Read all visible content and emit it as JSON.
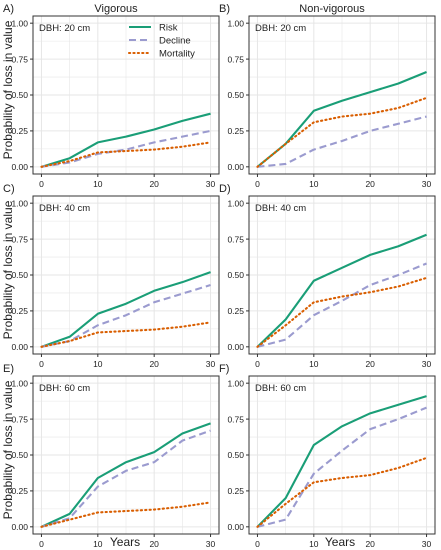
{
  "figure": {
    "y_axis_label": "Probability of loss in value",
    "x_axis_label": "Years",
    "colors": {
      "panel_border": "#333333",
      "grid": "#e6e6e6",
      "text": "#222222",
      "tick_text": "#4d4d4d"
    }
  },
  "chart_data": [
    {
      "type": "line",
      "panel_label": "A)",
      "column_title": "Vigorous",
      "inset_label": "DBH: 20 cm",
      "x": [
        0,
        5,
        10,
        15,
        20,
        25,
        30
      ],
      "xlim": [
        -1.5,
        31.5
      ],
      "ylim": [
        -0.05,
        1.05
      ],
      "x_ticks": [
        0,
        10,
        20,
        30
      ],
      "y_ticks": [
        0.0,
        0.25,
        0.5,
        0.75,
        1.0
      ],
      "y_tick_labels": [
        "0.00",
        "0.25",
        "0.50",
        "0.75",
        "1.00"
      ],
      "grid": true,
      "legend": {
        "placement": "top-center",
        "entries": [
          "Risk",
          "Decline",
          "Mortality"
        ]
      },
      "series": [
        {
          "name": "Risk",
          "color": "#1a9e77",
          "style": "solid",
          "values": [
            0.0,
            0.06,
            0.17,
            0.21,
            0.26,
            0.32,
            0.37
          ]
        },
        {
          "name": "Decline",
          "color": "#9b9bcf",
          "style": "dashed",
          "values": [
            0.0,
            0.03,
            0.09,
            0.12,
            0.17,
            0.21,
            0.25
          ]
        },
        {
          "name": "Mortality",
          "color": "#d95f02",
          "style": "dotted",
          "values": [
            0.0,
            0.04,
            0.1,
            0.11,
            0.12,
            0.14,
            0.17
          ]
        }
      ]
    },
    {
      "type": "line",
      "panel_label": "B)",
      "column_title": "Non-vigorous",
      "inset_label": "DBH: 20 cm",
      "x": [
        0,
        5,
        10,
        15,
        20,
        25,
        30
      ],
      "xlim": [
        -1.5,
        31.5
      ],
      "ylim": [
        -0.05,
        1.05
      ],
      "x_ticks": [
        0,
        10,
        20,
        30
      ],
      "y_ticks": [
        0.0,
        0.25,
        0.5,
        0.75,
        1.0
      ],
      "y_tick_labels": [
        "0.00",
        "0.25",
        "0.50",
        "0.75",
        "1.00"
      ],
      "grid": true,
      "series": [
        {
          "color": "#1a9e77",
          "style": "solid",
          "values": [
            0.0,
            0.16,
            0.39,
            0.46,
            0.52,
            0.58,
            0.66
          ]
        },
        {
          "color": "#9b9bcf",
          "style": "dashed",
          "values": [
            0.0,
            0.02,
            0.12,
            0.18,
            0.25,
            0.3,
            0.35
          ]
        },
        {
          "color": "#d95f02",
          "style": "dotted",
          "values": [
            0.0,
            0.16,
            0.31,
            0.35,
            0.37,
            0.41,
            0.48
          ]
        }
      ]
    },
    {
      "type": "line",
      "panel_label": "C)",
      "inset_label": "DBH: 40 cm",
      "x": [
        0,
        5,
        10,
        15,
        20,
        25,
        30
      ],
      "xlim": [
        -1.5,
        31.5
      ],
      "ylim": [
        -0.05,
        1.05
      ],
      "x_ticks": [
        0,
        10,
        20,
        30
      ],
      "y_ticks": [
        0.0,
        0.25,
        0.5,
        0.75,
        1.0
      ],
      "y_tick_labels": [
        "0.00",
        "0.25",
        "0.50",
        "0.75",
        "1.00"
      ],
      "grid": true,
      "series": [
        {
          "color": "#1a9e77",
          "style": "solid",
          "values": [
            0.0,
            0.07,
            0.23,
            0.3,
            0.39,
            0.45,
            0.52
          ]
        },
        {
          "color": "#9b9bcf",
          "style": "dashed",
          "values": [
            0.0,
            0.04,
            0.15,
            0.22,
            0.31,
            0.37,
            0.43
          ]
        },
        {
          "color": "#d95f02",
          "style": "dotted",
          "values": [
            0.0,
            0.04,
            0.1,
            0.11,
            0.12,
            0.14,
            0.17
          ]
        }
      ]
    },
    {
      "type": "line",
      "panel_label": "D)",
      "inset_label": "DBH: 40 cm",
      "x": [
        0,
        5,
        10,
        15,
        20,
        25,
        30
      ],
      "xlim": [
        -1.5,
        31.5
      ],
      "ylim": [
        -0.05,
        1.05
      ],
      "x_ticks": [
        0,
        10,
        20,
        30
      ],
      "y_ticks": [
        0.0,
        0.25,
        0.5,
        0.75,
        1.0
      ],
      "y_tick_labels": [
        "0.00",
        "0.25",
        "0.50",
        "0.75",
        "1.00"
      ],
      "grid": true,
      "series": [
        {
          "color": "#1a9e77",
          "style": "solid",
          "values": [
            0.0,
            0.19,
            0.46,
            0.55,
            0.64,
            0.7,
            0.78
          ]
        },
        {
          "color": "#9b9bcf",
          "style": "dashed",
          "values": [
            0.0,
            0.05,
            0.22,
            0.32,
            0.43,
            0.5,
            0.58
          ]
        },
        {
          "color": "#d95f02",
          "style": "dotted",
          "values": [
            0.0,
            0.15,
            0.31,
            0.35,
            0.38,
            0.42,
            0.48
          ]
        }
      ]
    },
    {
      "type": "line",
      "panel_label": "E)",
      "inset_label": "DBH: 60 cm",
      "x": [
        0,
        5,
        10,
        15,
        20,
        25,
        30
      ],
      "xlim": [
        -1.5,
        31.5
      ],
      "ylim": [
        -0.05,
        1.05
      ],
      "x_ticks": [
        0,
        10,
        20,
        30
      ],
      "y_ticks": [
        0.0,
        0.25,
        0.5,
        0.75,
        1.0
      ],
      "y_tick_labels": [
        "0.00",
        "0.25",
        "0.50",
        "0.75",
        "1.00"
      ],
      "grid": true,
      "series": [
        {
          "color": "#1a9e77",
          "style": "solid",
          "values": [
            0.0,
            0.09,
            0.34,
            0.45,
            0.52,
            0.65,
            0.72
          ]
        },
        {
          "color": "#9b9bcf",
          "style": "dashed",
          "values": [
            0.0,
            0.06,
            0.28,
            0.39,
            0.45,
            0.6,
            0.67
          ]
        },
        {
          "color": "#d95f02",
          "style": "dotted",
          "values": [
            0.0,
            0.05,
            0.1,
            0.11,
            0.12,
            0.14,
            0.17
          ]
        }
      ]
    },
    {
      "type": "line",
      "panel_label": "F)",
      "inset_label": "DBH: 60 cm",
      "x": [
        0,
        5,
        10,
        15,
        20,
        25,
        30
      ],
      "xlim": [
        -1.5,
        31.5
      ],
      "ylim": [
        -0.05,
        1.05
      ],
      "x_ticks": [
        0,
        10,
        20,
        30
      ],
      "y_ticks": [
        0.0,
        0.25,
        0.5,
        0.75,
        1.0
      ],
      "y_tick_labels": [
        "0.00",
        "0.25",
        "0.50",
        "0.75",
        "1.00"
      ],
      "grid": true,
      "series": [
        {
          "color": "#1a9e77",
          "style": "solid",
          "values": [
            0.0,
            0.2,
            0.57,
            0.7,
            0.79,
            0.85,
            0.91
          ]
        },
        {
          "color": "#9b9bcf",
          "style": "dashed",
          "values": [
            0.0,
            0.05,
            0.37,
            0.53,
            0.68,
            0.75,
            0.83
          ]
        },
        {
          "color": "#d95f02",
          "style": "dotted",
          "values": [
            0.0,
            0.16,
            0.31,
            0.34,
            0.36,
            0.41,
            0.48
          ]
        }
      ]
    }
  ]
}
